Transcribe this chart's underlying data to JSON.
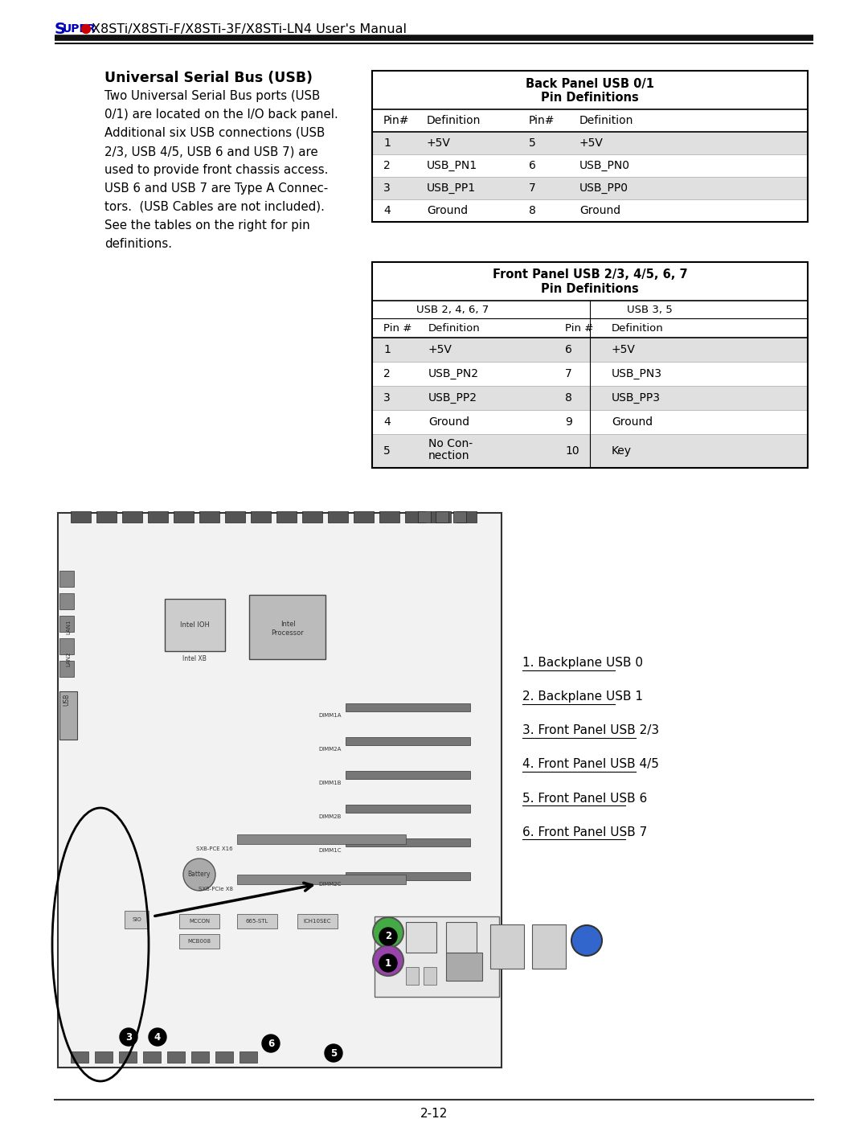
{
  "page_title_rest": "X8STi/X8STi-F/X8STi-3F/X8STi-LN4 User's Manual",
  "page_number": "2-12",
  "section_title": "Universal Serial Bus (USB)",
  "body_lines": [
    "Two Universal Serial Bus ports (USB",
    "0/1) are located on the I/O back panel.",
    "Additional six USB connections (USB",
    "2/3, USB 4/5, USB 6 and USB 7) are",
    "used to provide front chassis access.",
    "USB 6 and USB 7 are Type A Connec-",
    "tors.  (USB Cables are not included).",
    "See the tables on the right for pin",
    "definitions."
  ],
  "table1_title1": "Back Panel USB 0/1",
  "table1_title2": "Pin Definitions",
  "table1_header": [
    "Pin#",
    "Definition",
    "Pin#",
    "Definition"
  ],
  "table1_rows": [
    [
      "1",
      "+5V",
      "5",
      "+5V"
    ],
    [
      "2",
      "USB_PN1",
      "6",
      "USB_PN0"
    ],
    [
      "3",
      "USB_PP1",
      "7",
      "USB_PP0"
    ],
    [
      "4",
      "Ground",
      "8",
      "Ground"
    ]
  ],
  "table1_shaded_rows": [
    0,
    2
  ],
  "table2_title1": "Front Panel USB 2/3, 4/5, 6, 7",
  "table2_title2": "Pin Definitions",
  "table2_sub1_left": "USB 2, 4, 6, 7",
  "table2_sub1_right": "USB 3, 5",
  "table2_sub2": [
    "Pin #",
    "Definition",
    "Pin #",
    "Definition"
  ],
  "table2_rows": [
    [
      "1",
      "+5V",
      "6",
      "+5V"
    ],
    [
      "2",
      "USB_PN2",
      "7",
      "USB_PN3"
    ],
    [
      "3",
      "USB_PP2",
      "8",
      "USB_PP3"
    ],
    [
      "4",
      "Ground",
      "9",
      "Ground"
    ],
    [
      "5",
      "No Con-\nnection",
      "10",
      "Key"
    ]
  ],
  "table2_shaded_rows": [
    0,
    2,
    4
  ],
  "legend_items": [
    "1. Backplane USB 0",
    "2. Backplane USB 1",
    "3. Front Panel USB 2/3",
    "4. Front Panel USB 4/5",
    "5. Front Panel USB 6",
    "6. Front Panel USB 7"
  ],
  "bg_color": "#ffffff",
  "shaded_bg": "#e0e0e0",
  "white_bg": "#ffffff",
  "super_color": "#0000bb",
  "dot_color": "#cc0000",
  "header_bar_color": "#1a1a1a"
}
